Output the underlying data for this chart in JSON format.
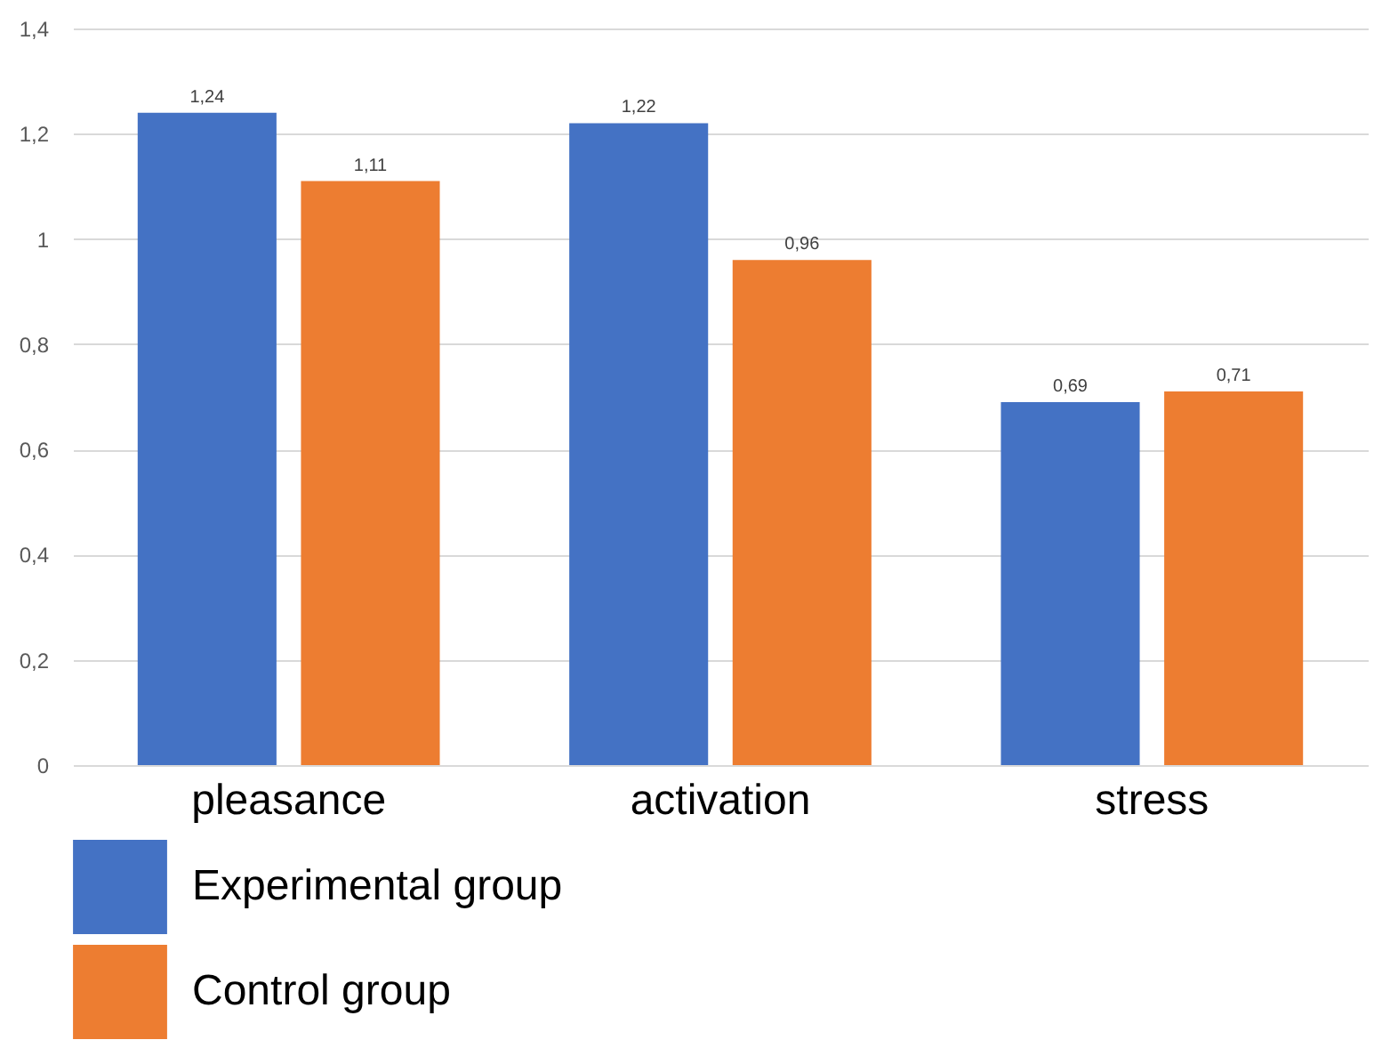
{
  "chart_data": {
    "type": "bar",
    "categories": [
      "pleasance",
      "activation",
      "stress"
    ],
    "series": [
      {
        "name": "Experimental group",
        "color": "#4472c4",
        "values": [
          1.24,
          1.22,
          0.69
        ],
        "value_labels": [
          "1,24",
          "1,22",
          "0,69"
        ]
      },
      {
        "name": "Control group",
        "color": "#ed7d31",
        "values": [
          1.11,
          0.96,
          0.71
        ],
        "value_labels": [
          "1,11",
          "0,96",
          "0,71"
        ]
      }
    ],
    "ylim": [
      0,
      1.4
    ],
    "yticks": [
      0,
      {
        "value": 0.2,
        "label": "0,2"
      },
      {
        "value": 0.4,
        "label": "0,4"
      },
      {
        "value": 0.6,
        "label": "0,6"
      },
      {
        "value": 0.8,
        "label": "0,8"
      },
      1,
      {
        "value": 1.2,
        "label": "1,2"
      },
      {
        "value": 1.4,
        "label": "1,4"
      }
    ],
    "grid": "y",
    "legend": "bottom"
  }
}
